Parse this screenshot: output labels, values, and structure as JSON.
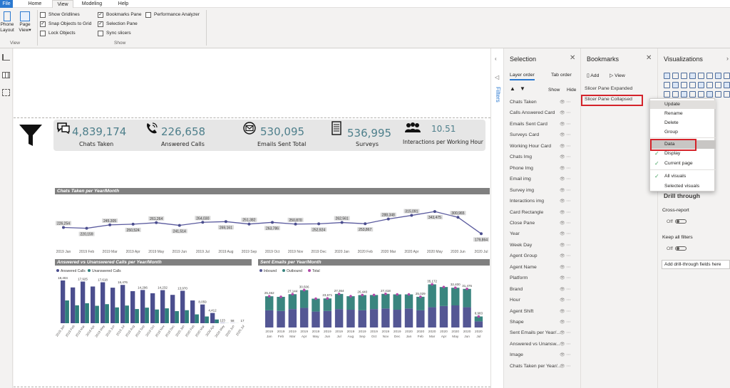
{
  "menubar": {
    "file": "File",
    "tabs": [
      "Home",
      "View",
      "Modeling",
      "Help"
    ]
  },
  "ribbon": {
    "phone_layout": [
      "Phone",
      "Layout"
    ],
    "page_view": [
      "Page",
      "View"
    ],
    "view_group": "View",
    "show_group": "Show",
    "checks": [
      {
        "label": "Show Gridlines",
        "checked": false
      },
      {
        "label": "Snap Objects to Grid",
        "checked": true
      },
      {
        "label": "Lock Objects",
        "checked": false
      },
      {
        "label": "Bookmarks Pane",
        "checked": true
      },
      {
        "label": "Selection Pane",
        "checked": true
      },
      {
        "label": "Sync slicers",
        "checked": false
      },
      {
        "label": "Performance Analyzer",
        "checked": false
      }
    ]
  },
  "kpis": [
    {
      "value": "4,839,174",
      "label": "Chats Taken",
      "icon": "chat-icon"
    },
    {
      "value": "226,658",
      "label": "Answered Calls",
      "icon": "phone-icon"
    },
    {
      "value": "530,095",
      "label": "Emails Sent Total",
      "icon": "mail-icon"
    },
    {
      "value": "536,995",
      "label": "Surveys",
      "icon": "survey-icon"
    },
    {
      "value": "10.51",
      "label": "Interactions per Working Hour",
      "icon": "people-icon"
    }
  ],
  "chart_data": [
    {
      "type": "line",
      "title": "Chats Taken per Year/Month",
      "categories": [
        "2019 Jan",
        "2019 Feb",
        "2019 Mar",
        "2019 Apr",
        "2019 May",
        "2019 Jun",
        "2019 Jul",
        "2019 Aug",
        "2019 Sep",
        "2019 Oct",
        "2019 Nov",
        "2019 Dec",
        "2020 Jan",
        "2020 Feb",
        "2020 Mar",
        "2020 Apr",
        "2020 May",
        "2020 Jun",
        "2020 Jul"
      ],
      "values": [
        226254,
        220159,
        245305,
        250524,
        261264,
        241514,
        264030,
        269161,
        251382,
        263786,
        250870,
        252924,
        262561,
        253867,
        288348,
        315091,
        343475,
        300965,
        179864
      ],
      "labels": [
        "226,254",
        "220,159",
        "245,305",
        "250,524",
        "261,264",
        "241,514",
        "264,030",
        "269,161",
        "251,382",
        "263,786",
        "250,870",
        "252,924",
        "262,561",
        "253,867",
        "288,348",
        "315,091",
        "343,475",
        "300,965",
        "179,864"
      ]
    },
    {
      "type": "bar",
      "title": "Answered vs Unanswered Calls per Year/Month",
      "legend": [
        "Answered Calls",
        "Unanswered Calls"
      ],
      "categories": [
        "2019 Jan",
        "2019 Feb",
        "2019 Mar",
        "2019 Apr",
        "2019 May",
        "2019 Jun",
        "2019 Jul",
        "2019 Aug",
        "2019 Sep",
        "2019 Oct",
        "2019 Nov",
        "2019 Dec",
        "2020 Jan",
        "2020 Feb",
        "2020 Mar",
        "2020 Apr",
        "2020 May",
        "2020 Jun",
        "2020 Jul"
      ],
      "series": [
        {
          "name": "Answered Calls",
          "values": [
            18404,
            15400,
            17925,
            15800,
            17618,
            15300,
            16476,
            13800,
            14296,
            12900,
            14232,
            12200,
            13970,
            9800,
            8059,
            4412,
            123,
            58,
            17
          ]
        },
        {
          "name": "Unanswered Calls",
          "values": [
            9800,
            7700,
            8600,
            7500,
            8200,
            6800,
            7600,
            6100,
            6700,
            5900,
            6400,
            5200,
            5600,
            3800,
            2900,
            1600,
            40,
            20,
            5
          ]
        }
      ],
      "labels": [
        "18,404",
        "",
        "17,925",
        "",
        "17,618",
        "",
        "16,476",
        "",
        "14,296",
        "",
        "14,232",
        "",
        "13,970",
        "",
        "8,059",
        "4,412",
        "123",
        "58",
        "17"
      ]
    },
    {
      "type": "bar",
      "title": "Sent Emails per Year/Month",
      "legend": [
        "Inbound",
        "Outbound",
        "Total"
      ],
      "categories": [
        "2019 Jan",
        "2019 Feb",
        "2019 Mar",
        "2019 Apr",
        "2019 May",
        "2019 Jun",
        "2019 Jul",
        "2019 Aug",
        "2019 Sep",
        "2019 Oct",
        "2019 Nov",
        "2019 Dec",
        "2020 Jan",
        "2020 Feb",
        "2020 Mar",
        "2020 Apr",
        "2020 May",
        "2020 Jun",
        "2020 Jul"
      ],
      "series": [
        {
          "name": "Inbound",
          "values": [
            14000,
            13500,
            15000,
            16000,
            13000,
            13500,
            15000,
            14500,
            14000,
            15000,
            15500,
            14500,
            15500,
            14000,
            16500,
            17500,
            18000,
            16500,
            5000
          ]
        },
        {
          "name": "Outbound",
          "values": [
            11462,
            11500,
            12144,
            14506,
            10500,
            10171,
            12364,
            11000,
            12440,
            11500,
            11918,
            12500,
            11500,
            11029,
            18672,
            15500,
            14400,
            14976,
            3983
          ]
        }
      ],
      "labels": [
        "25,462",
        "",
        "27,144",
        "30,506",
        "",
        "23,671",
        "27,364",
        "",
        "26,440",
        "",
        "27,418",
        "",
        "",
        "25,029",
        "35,172",
        "",
        "32,400",
        "31,476",
        "8,983"
      ]
    }
  ],
  "filters": {
    "label": "Filters"
  },
  "selection": {
    "title": "Selection",
    "tab_layer": "Layer order",
    "tab_tab": "Tab order",
    "show": "Show",
    "hide": "Hide",
    "layers": [
      "Chats Taken",
      "Calls Answered Card",
      "Emails Sent  Card",
      "Surveys Card",
      "Working Hour Card",
      "Chats Img",
      "Phone Img",
      "Email img",
      "Survey img",
      "Interactions img",
      "Card Rectangle",
      "Close Pane",
      "Year",
      "Week Day",
      "Agent Group",
      "Agent Name",
      "Platform",
      "Brand",
      "Hour",
      "Agent Shift",
      "Shape",
      "Sent Emails per Year/...",
      "Answered vs Unansw...",
      "Image",
      "Chats Taken per Year/..."
    ]
  },
  "bookmarks": {
    "title": "Bookmarks",
    "add": "Add",
    "view": "View",
    "items": [
      "Slicer Pane Expanded",
      "Slicer Pane Collapsed"
    ]
  },
  "context_menu": {
    "items": [
      {
        "label": "Update",
        "checked": false
      },
      {
        "label": "Rename",
        "checked": false
      },
      {
        "label": "Delete",
        "checked": false
      },
      {
        "label": "Group",
        "checked": false
      },
      {
        "label": "Data",
        "checked": false
      },
      {
        "label": "Display",
        "checked": true
      },
      {
        "label": "Current page",
        "checked": true
      },
      {
        "label": "All visuals",
        "checked": true
      },
      {
        "label": "Selected visuals",
        "checked": false
      }
    ]
  },
  "visualizations": {
    "title": "Visualizations",
    "drill_through": "Drill through",
    "cross_report": "Cross-report",
    "off": "Off",
    "keep_filters": "Keep all filters",
    "add_fields": "Add drill-through fields here"
  },
  "colors": {
    "accent": "#4e7f8b",
    "answered": "#4b4e8e",
    "unanswered": "#2f7f7c",
    "inbound": "#545794",
    "outbound": "#3a857f",
    "total": "#b249a8",
    "highlight": "#d4232a"
  }
}
